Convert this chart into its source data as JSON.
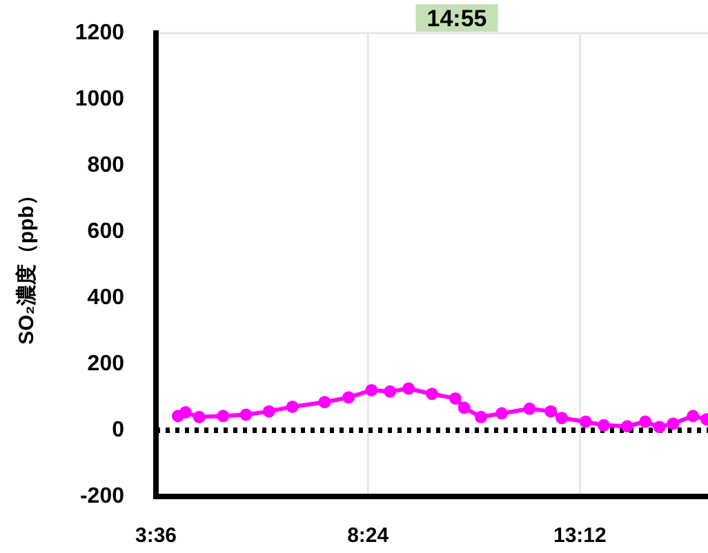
{
  "chart_data": {
    "type": "line",
    "title": "14:55",
    "ylabel": "SO₂濃度（ppb）",
    "xlim": [
      3.6,
      16.1
    ],
    "xticks": [
      {
        "value": 3.6,
        "label": "3:36"
      },
      {
        "value": 8.4,
        "label": "8:24"
      },
      {
        "value": 13.2,
        "label": "13:12"
      }
    ],
    "ylim": [
      -200,
      1200
    ],
    "yticks": [
      -200,
      0,
      200,
      400,
      600,
      800,
      1000,
      1200
    ],
    "grid": "x",
    "marker": "circle",
    "line_style": "solid",
    "ref_lines": [
      {
        "axis": "y",
        "value": 0,
        "color": "#000000",
        "line_style": "dotted"
      }
    ],
    "series": [
      {
        "color": "#ff00ff",
        "x": [
          4.1,
          4.27,
          4.58,
          5.12,
          5.64,
          6.16,
          6.69,
          7.42,
          7.96,
          8.48,
          8.9,
          9.32,
          9.85,
          10.38,
          10.58,
          10.96,
          11.43,
          12.06,
          12.54,
          12.79,
          13.33,
          13.74,
          14.27,
          14.68,
          15.0,
          15.31,
          15.76,
          16.07
        ],
        "values": [
          43,
          54,
          40,
          43,
          47,
          57,
          71,
          85,
          99,
          121,
          117,
          126,
          110,
          96,
          68,
          40,
          51,
          65,
          57,
          37,
          26,
          15,
          12,
          26,
          10,
          20,
          43,
          33
        ]
      }
    ]
  }
}
